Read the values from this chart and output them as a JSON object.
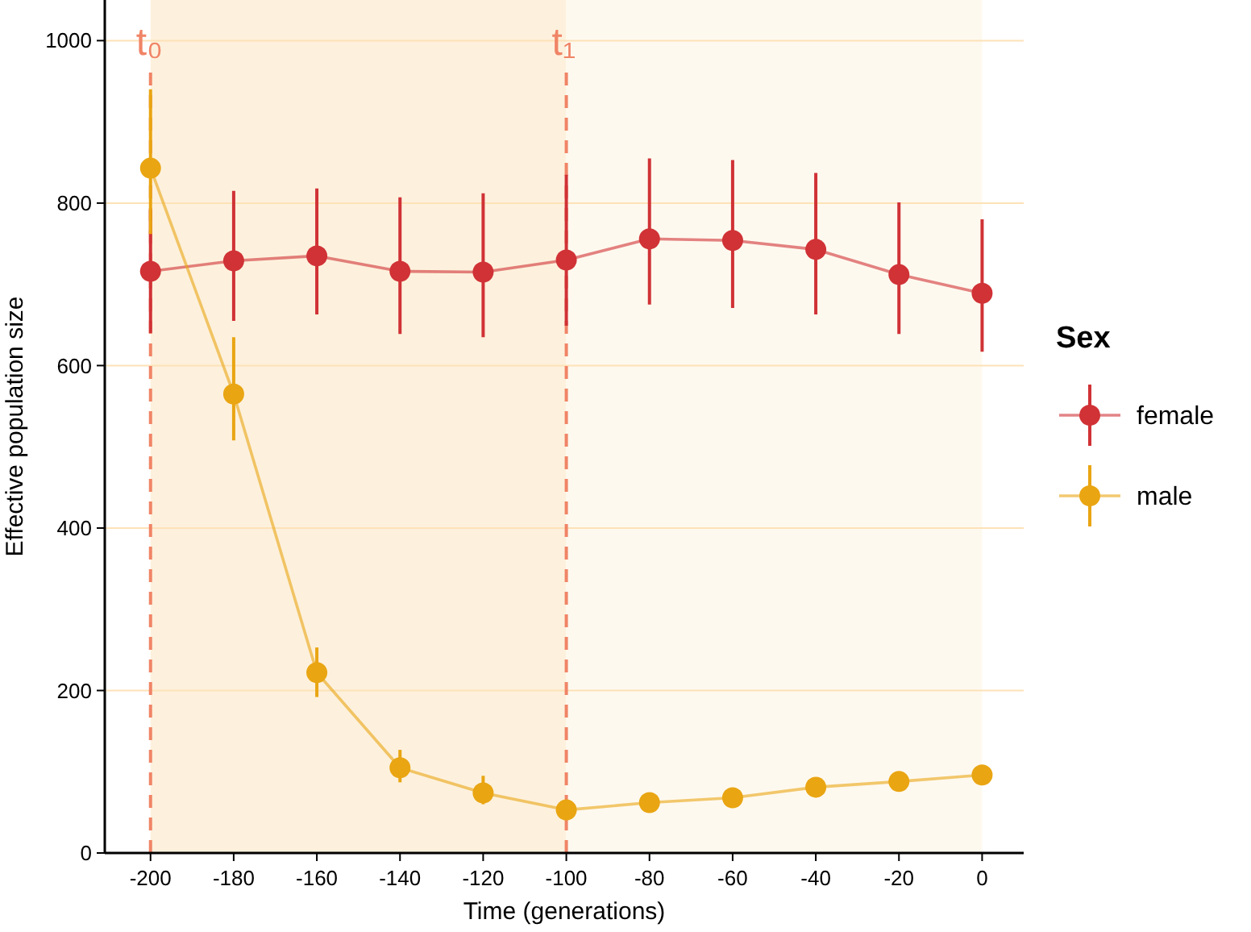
{
  "chart_data": {
    "type": "line",
    "xlabel": "Time (generations)",
    "ylabel": "Effective population size",
    "legend_title": "Sex",
    "legend": "right",
    "grid": "y",
    "marker": "circle",
    "line_style": "solid",
    "x": [
      -200,
      -180,
      -160,
      -140,
      -120,
      -100,
      -80,
      -60,
      -40,
      -20,
      0
    ],
    "xlim": [
      -211,
      10
    ],
    "xticks": [
      -200,
      -180,
      -160,
      -140,
      -120,
      -100,
      -80,
      -60,
      -40,
      -20,
      0
    ],
    "ylim": [
      0,
      1050
    ],
    "yticks": [
      0,
      200,
      400,
      600,
      800,
      1000
    ],
    "series": [
      {
        "name": "female",
        "color": "#d03236",
        "values": [
          716,
          729,
          735,
          716,
          715,
          730,
          756,
          754,
          743,
          712,
          689
        ],
        "errors": [
          [
            640,
            792
          ],
          [
            655,
            815
          ],
          [
            663,
            818
          ],
          [
            639,
            807
          ],
          [
            635,
            812
          ],
          [
            649,
            835
          ],
          [
            675,
            855
          ],
          [
            671,
            853
          ],
          [
            663,
            837
          ],
          [
            639,
            801
          ],
          [
            617,
            780
          ]
        ]
      },
      {
        "name": "male",
        "color": "#e9a512",
        "values": [
          843,
          565,
          222,
          105,
          74,
          53,
          62,
          68,
          81,
          88,
          96
        ],
        "errors": [
          [
            762,
            940
          ],
          [
            508,
            635
          ],
          [
            192,
            253
          ],
          [
            87,
            127
          ],
          [
            60,
            95
          ],
          null,
          [
            55,
            72
          ],
          null,
          null,
          null,
          null
        ]
      }
    ],
    "bands": [
      {
        "axis": "x",
        "from": -200,
        "to": -100,
        "color": "#fdf1dd"
      },
      {
        "axis": "x",
        "from": -100,
        "to": 0,
        "color": "#fef9ef"
      }
    ],
    "ref_lines": [
      {
        "axis": "x",
        "value": -200,
        "label": "t₀",
        "color": "#f08466",
        "line_style": "dashed"
      },
      {
        "axis": "x",
        "value": -100,
        "label": "t₁",
        "color": "#f08466",
        "line_style": "dashed"
      }
    ]
  }
}
